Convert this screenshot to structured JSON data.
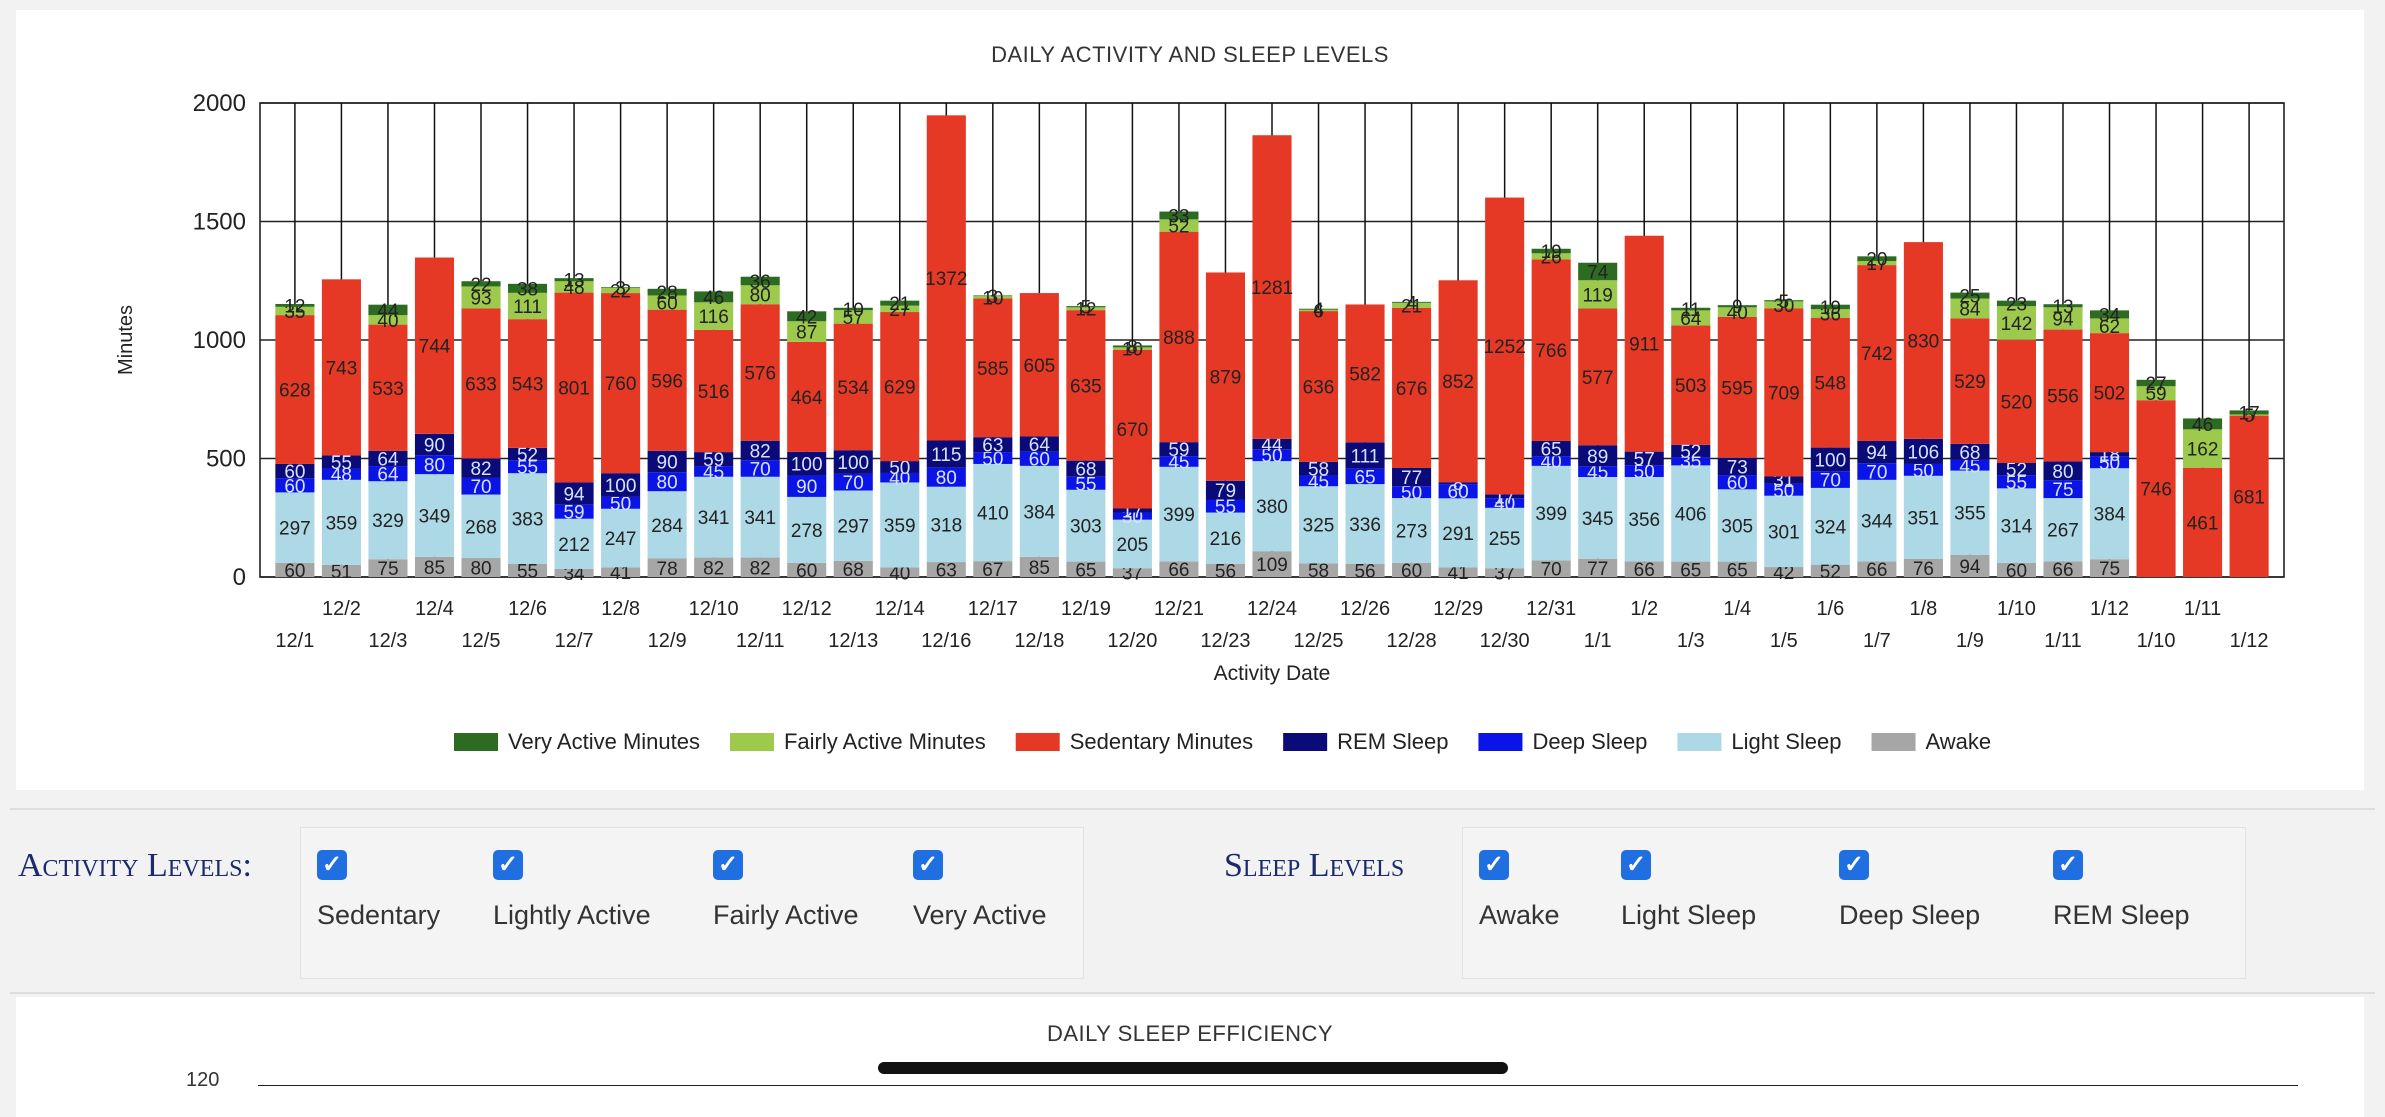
{
  "chart_data": {
    "type": "bar",
    "stacked": true,
    "title": "DAILY ACTIVITY AND SLEEP LEVELS",
    "xlabel": "Activity Date",
    "ylabel": "Minutes",
    "ylim": [
      0,
      2000
    ],
    "yticks": [
      0,
      500,
      1000,
      1500,
      2000
    ],
    "grid": true,
    "legend_position": "bottom",
    "categories": [
      "12/1",
      "12/2",
      "12/3",
      "12/4",
      "12/5",
      "12/6",
      "12/7",
      "12/8",
      "12/9",
      "12/10",
      "12/11",
      "12/12",
      "12/13",
      "12/14",
      "12/16",
      "12/17",
      "12/18",
      "12/19",
      "12/20",
      "12/21",
      "12/23",
      "12/24",
      "12/25",
      "12/26",
      "12/28",
      "12/29",
      "12/30",
      "12/31",
      "1/1",
      "1/2",
      "1/3",
      "1/4",
      "1/5",
      "1/6",
      "1/7",
      "1/8",
      "1/9",
      "1/10",
      "1/11",
      "1/12",
      "1/10",
      "1/11",
      "1/12"
    ],
    "series": [
      {
        "name": "Awake",
        "color": "#a6a6a6",
        "values": [
          60,
          51,
          75,
          85,
          80,
          55,
          34,
          41,
          78,
          82,
          82,
          60,
          68,
          40,
          63,
          67,
          85,
          65,
          37,
          66,
          56,
          109,
          58,
          56,
          60,
          41,
          37,
          70,
          77,
          66,
          65,
          65,
          42,
          52,
          66,
          76,
          94,
          60,
          66,
          75,
          0,
          0,
          0
        ]
      },
      {
        "name": "Light Sleep",
        "color": "#add8e6",
        "values": [
          297,
          359,
          329,
          349,
          268,
          383,
          212,
          247,
          284,
          341,
          341,
          278,
          297,
          359,
          318,
          410,
          384,
          303,
          205,
          399,
          216,
          380,
          325,
          336,
          273,
          291,
          255,
          399,
          345,
          356,
          406,
          305,
          301,
          324,
          344,
          351,
          355,
          314,
          267,
          384,
          0,
          0,
          0
        ]
      },
      {
        "name": "Deep Sleep",
        "color": "#0a14e6",
        "values": [
          60,
          48,
          64,
          80,
          70,
          55,
          59,
          50,
          80,
          45,
          70,
          90,
          70,
          40,
          80,
          50,
          60,
          55,
          30,
          45,
          55,
          50,
          45,
          65,
          50,
          60,
          40,
          40,
          45,
          50,
          35,
          60,
          50,
          70,
          70,
          50,
          45,
          55,
          75,
          50,
          0,
          0,
          0
        ]
      },
      {
        "name": "REM Sleep",
        "color": "#0a0a78",
        "values": [
          60,
          55,
          64,
          90,
          82,
          52,
          94,
          100,
          90,
          59,
          82,
          100,
          100,
          50,
          115,
          63,
          64,
          68,
          17,
          59,
          79,
          44,
          58,
          111,
          77,
          8,
          17,
          65,
          89,
          57,
          52,
          73,
          31,
          100,
          94,
          106,
          68,
          52,
          80,
          18,
          0,
          0,
          0
        ]
      },
      {
        "name": "Sedentary Minutes",
        "color": "#e53925",
        "values": [
          628,
          743,
          533,
          744,
          633,
          543,
          801,
          760,
          596,
          516,
          576,
          464,
          534,
          629,
          1372,
          585,
          605,
          635,
          670,
          888,
          879,
          1281,
          636,
          582,
          676,
          852,
          1252,
          766,
          577,
          911,
          503,
          595,
          709,
          548,
          742,
          830,
          529,
          520,
          556,
          502,
          746,
          461,
          681
        ]
      },
      {
        "name": "Fairly Active Minutes",
        "color": "#9dc94c",
        "values": [
          35,
          0,
          40,
          0,
          93,
          111,
          48,
          22,
          60,
          116,
          80,
          87,
          57,
          27,
          0,
          10,
          0,
          12,
          10,
          52,
          0,
          0,
          6,
          0,
          21,
          0,
          0,
          26,
          119,
          0,
          64,
          40,
          30,
          36,
          17,
          0,
          84,
          142,
          94,
          62,
          59,
          162,
          5
        ]
      },
      {
        "name": "Very Active Minutes",
        "color": "#2e6b22",
        "values": [
          12,
          0,
          44,
          0,
          22,
          38,
          13,
          3,
          28,
          46,
          36,
          42,
          10,
          21,
          0,
          3,
          0,
          5,
          8,
          33,
          0,
          0,
          4,
          0,
          4,
          0,
          0,
          19,
          74,
          0,
          11,
          9,
          5,
          19,
          20,
          0,
          25,
          23,
          13,
          34,
          27,
          46,
          17
        ]
      }
    ]
  },
  "legend": [
    {
      "label": "Very Active Minutes",
      "color": "#2e6b22"
    },
    {
      "label": "Fairly Active Minutes",
      "color": "#9dc94c"
    },
    {
      "label": "Sedentary Minutes",
      "color": "#e53925"
    },
    {
      "label": "REM Sleep",
      "color": "#0a0a78"
    },
    {
      "label": "Deep Sleep",
      "color": "#0a14e6"
    },
    {
      "label": "Light Sleep",
      "color": "#add8e6"
    },
    {
      "label": "Awake",
      "color": "#a6a6a6"
    }
  ],
  "activity_filters": {
    "heading": "Activity Levels:",
    "items": [
      {
        "label": "Sedentary",
        "checked": true
      },
      {
        "label": "Lightly Active",
        "checked": true
      },
      {
        "label": "Fairly Active",
        "checked": true
      },
      {
        "label": "Very Active",
        "checked": true
      }
    ]
  },
  "sleep_filters": {
    "heading": "Sleep Levels",
    "items": [
      {
        "label": "Awake",
        "checked": true
      },
      {
        "label": "Light Sleep",
        "checked": true
      },
      {
        "label": "Deep Sleep",
        "checked": true
      },
      {
        "label": "REM Sleep",
        "checked": true
      }
    ]
  },
  "efficiency_chart": {
    "title": "DAILY SLEEP EFFICIENCY",
    "top_tick": "120"
  },
  "checkmark_glyph": "✓"
}
